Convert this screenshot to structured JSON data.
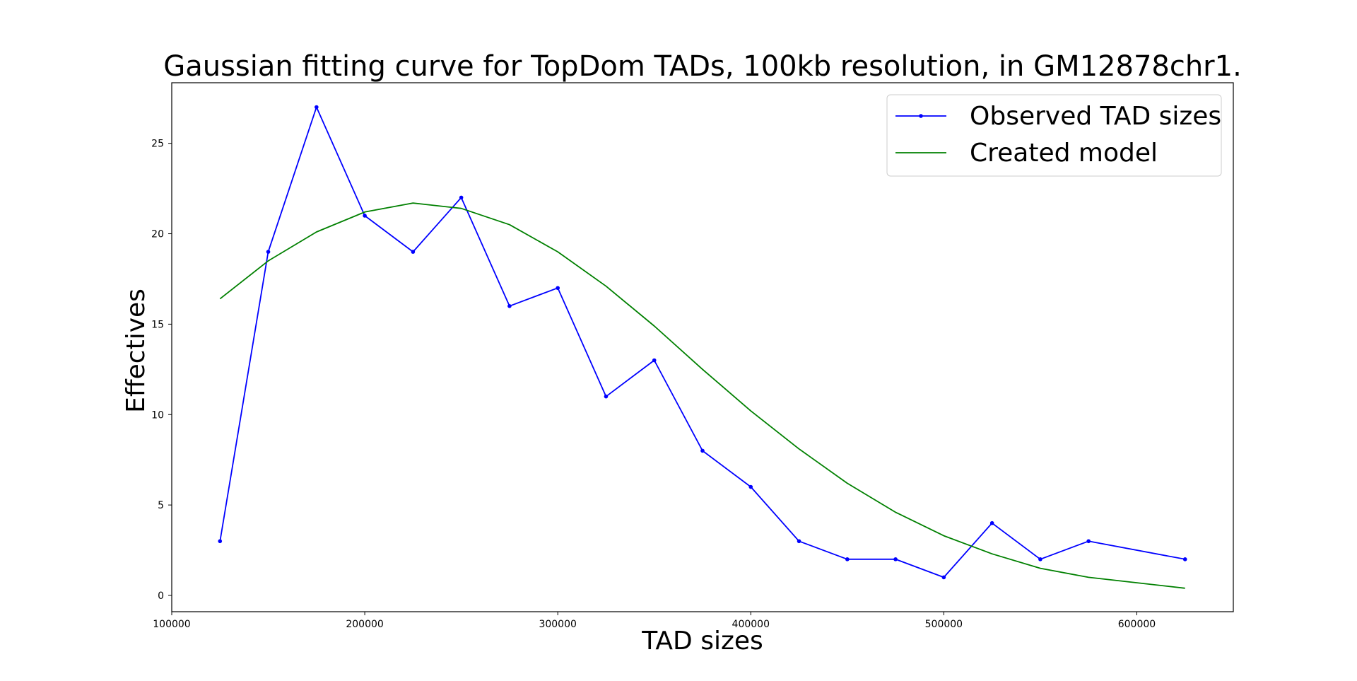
{
  "chart_data": {
    "type": "line",
    "title": "Gaussian fitting curve for TopDom TADs, 100kb resolution, in GM12878chr1.",
    "xlabel": "TAD sizes",
    "ylabel": "Effectives",
    "xlim": [
      100000,
      650000
    ],
    "ylim": [
      -0.9,
      28.35
    ],
    "x_ticks": [
      100000,
      200000,
      300000,
      400000,
      500000,
      600000
    ],
    "x_tick_labels": [
      "100000",
      "200000",
      "300000",
      "400000",
      "500000",
      "600000"
    ],
    "y_ticks": [
      0,
      5,
      10,
      15,
      20,
      25
    ],
    "y_tick_labels": [
      "0",
      "5",
      "10",
      "15",
      "20",
      "25"
    ],
    "grid": false,
    "legend_position": "top-right",
    "x": [
      125000,
      150000,
      175000,
      200000,
      225000,
      250000,
      275000,
      300000,
      325000,
      350000,
      375000,
      400000,
      425000,
      450000,
      475000,
      500000,
      525000,
      550000,
      575000,
      625000
    ],
    "series": [
      {
        "name": "Observed TAD sizes",
        "color": "#0000ff",
        "marker": "dot",
        "values": [
          3,
          19,
          27,
          21,
          19,
          22,
          16,
          17,
          11,
          13,
          8,
          6,
          3,
          2,
          2,
          1,
          4,
          2,
          3,
          2
        ]
      },
      {
        "name": "Created model",
        "color": "#008000",
        "marker": "none",
        "values": [
          16.4,
          18.5,
          20.1,
          21.2,
          21.7,
          21.4,
          20.5,
          19.0,
          17.1,
          14.9,
          12.5,
          10.2,
          8.1,
          6.2,
          4.6,
          3.3,
          2.3,
          1.5,
          1.0,
          0.4
        ]
      }
    ]
  }
}
